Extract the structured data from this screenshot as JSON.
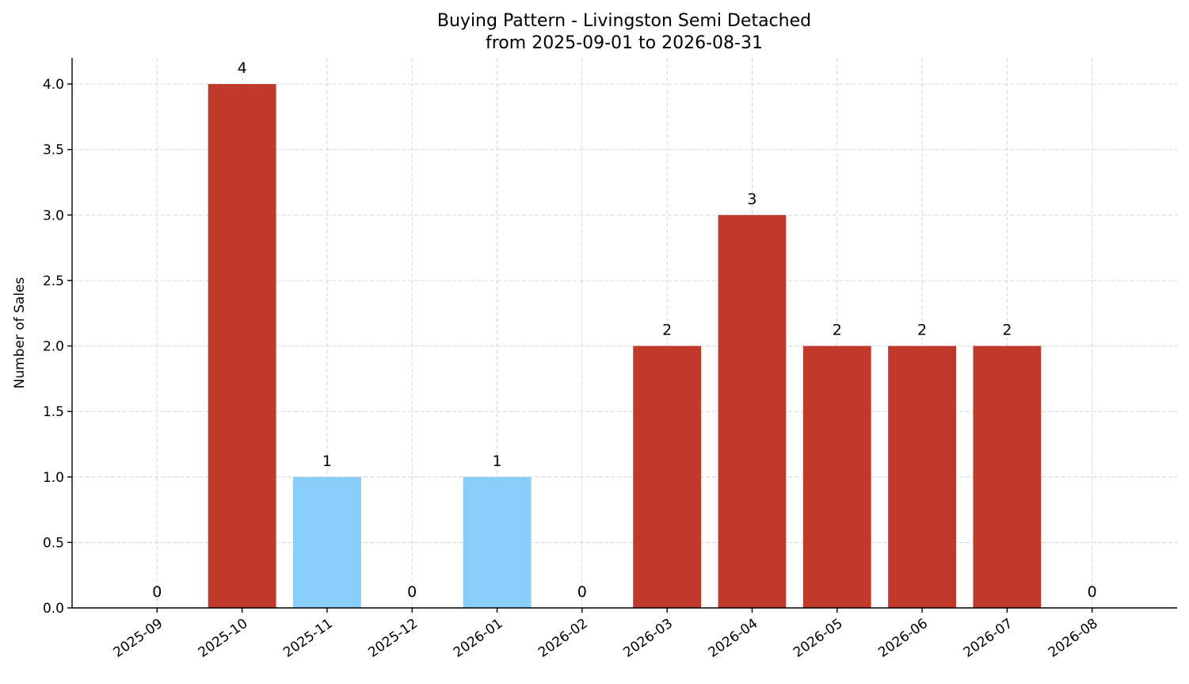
{
  "chart_data": {
    "type": "bar",
    "title": "Buying Pattern - Livingston Semi Detached",
    "subtitle": "from 2025-09-01 to 2026-08-31",
    "y_label": "Number of Sales",
    "categories": [
      "2025-09",
      "2025-10",
      "2025-11",
      "2025-12",
      "2026-01",
      "2026-02",
      "2026-03",
      "2026-04",
      "2026-05",
      "2026-06",
      "2026-07",
      "2026-08"
    ],
    "values": [
      0,
      4,
      1,
      0,
      1,
      0,
      2,
      3,
      2,
      2,
      2,
      0
    ],
    "colors": [
      "#c0392b",
      "#c0392b",
      "#87cefa",
      "#c0392b",
      "#87cefa",
      "#c0392b",
      "#c0392b",
      "#c0392b",
      "#c0392b",
      "#c0392b",
      "#c0392b",
      "#c0392b"
    ],
    "ylim": [
      0,
      4.2
    ],
    "yticks": [
      {
        "value": 0,
        "label": "0.0"
      },
      0.5,
      {
        "value": 1,
        "label": "1.0"
      },
      1.5,
      {
        "value": 2,
        "label": "2.0"
      },
      2.5,
      {
        "value": 3,
        "label": "3.0"
      },
      3.5,
      {
        "value": 4,
        "label": "4.0"
      }
    ],
    "grid": true
  }
}
